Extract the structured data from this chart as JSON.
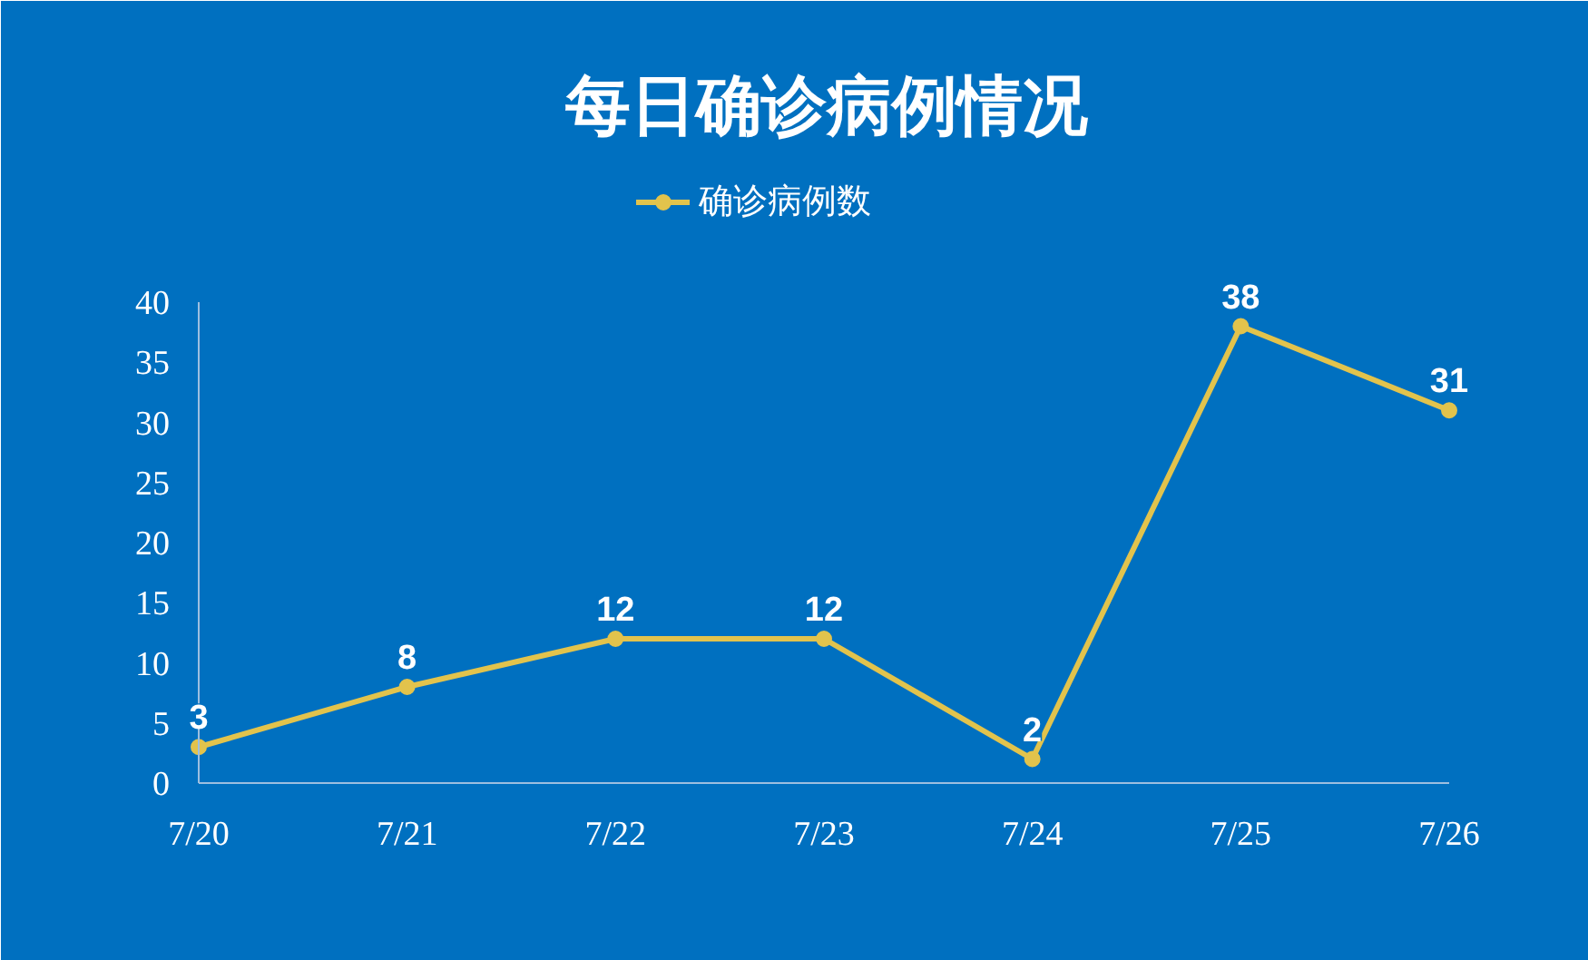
{
  "chart_data": {
    "type": "line",
    "title": "每日确诊病例情况",
    "categories": [
      "7/20",
      "7/21",
      "7/22",
      "7/23",
      "7/24",
      "7/25",
      "7/26"
    ],
    "series": [
      {
        "name": "确诊病例数",
        "color": "#e2c34c",
        "values": [
          3,
          8,
          12,
          12,
          2,
          38,
          31
        ]
      }
    ],
    "ylim": [
      0,
      40
    ],
    "yticks": [
      0,
      5,
      10,
      15,
      20,
      25,
      30,
      35,
      40
    ],
    "grid": false,
    "legend": "top",
    "marker": "circle",
    "line_style": "solid",
    "data_labels": true
  }
}
